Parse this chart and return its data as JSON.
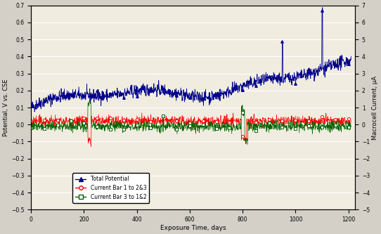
{
  "title": "",
  "xlabel": "Exposure Time, days",
  "ylabel_left": "Potential, V vs. CSE",
  "ylabel_right": "Macrocell Current, μA",
  "xlim": [
    0,
    1225
  ],
  "ylim_left": [
    -0.5,
    0.7
  ],
  "ylim_right": [
    -5,
    7
  ],
  "xticks": [
    0,
    200,
    400,
    600,
    800,
    1000,
    1200
  ],
  "yticks_left": [
    -0.5,
    -0.4,
    -0.3,
    -0.2,
    -0.1,
    0.0,
    0.1,
    0.2,
    0.3,
    0.4,
    0.5,
    0.6,
    0.7
  ],
  "bg_color": "#d4d0c8",
  "plot_bg": "#f0ede0",
  "grid_color": "#ffffff",
  "legend_labels": [
    "Total Potential",
    "Current Bar 1 to 2&3",
    "Current Bar 3 to 1&2"
  ],
  "pot_color": "#00008B",
  "cur1_color": "#FF0000",
  "cur3_color": "#006400",
  "seed": 42,
  "figsize": [
    5.42,
    3.33
  ],
  "dpi": 100
}
